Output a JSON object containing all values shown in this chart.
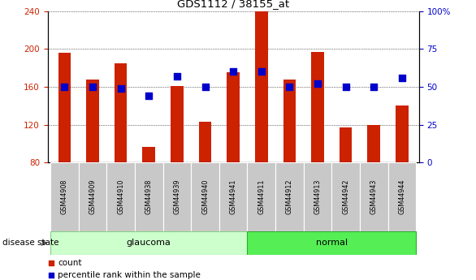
{
  "title": "GDS1112 / 38155_at",
  "samples": [
    "GSM44908",
    "GSM44909",
    "GSM44910",
    "GSM44938",
    "GSM44939",
    "GSM44940",
    "GSM44941",
    "GSM44911",
    "GSM44912",
    "GSM44913",
    "GSM44942",
    "GSM44943",
    "GSM44944"
  ],
  "count_values": [
    196,
    168,
    185,
    96,
    161,
    123,
    175,
    240,
    168,
    197,
    117,
    120,
    140
  ],
  "percentile_values": [
    50,
    50,
    49,
    44,
    57,
    50,
    60,
    60,
    50,
    52,
    50,
    50,
    56
  ],
  "ylim_left": [
    80,
    240
  ],
  "ylim_right": [
    0,
    100
  ],
  "yticks_left": [
    80,
    120,
    160,
    200,
    240
  ],
  "yticks_right": [
    0,
    25,
    50,
    75,
    100
  ],
  "bar_color": "#cc2200",
  "dot_color": "#0000cc",
  "glaucoma_light": "#ccffcc",
  "normal_dark": "#55ee55",
  "glaucoma_indices": [
    0,
    1,
    2,
    3,
    4,
    5,
    6
  ],
  "normal_indices": [
    7,
    8,
    9,
    10,
    11,
    12
  ],
  "disease_label": "disease state",
  "glaucoma_label": "glaucoma",
  "normal_label": "normal",
  "legend_count": "count",
  "legend_percentile": "percentile rank within the sample",
  "bar_width": 0.45,
  "dot_size": 35,
  "label_box_color": "#c8c8c8",
  "right_ytick_labels": [
    "0",
    "25",
    "50",
    "75",
    "100%"
  ]
}
